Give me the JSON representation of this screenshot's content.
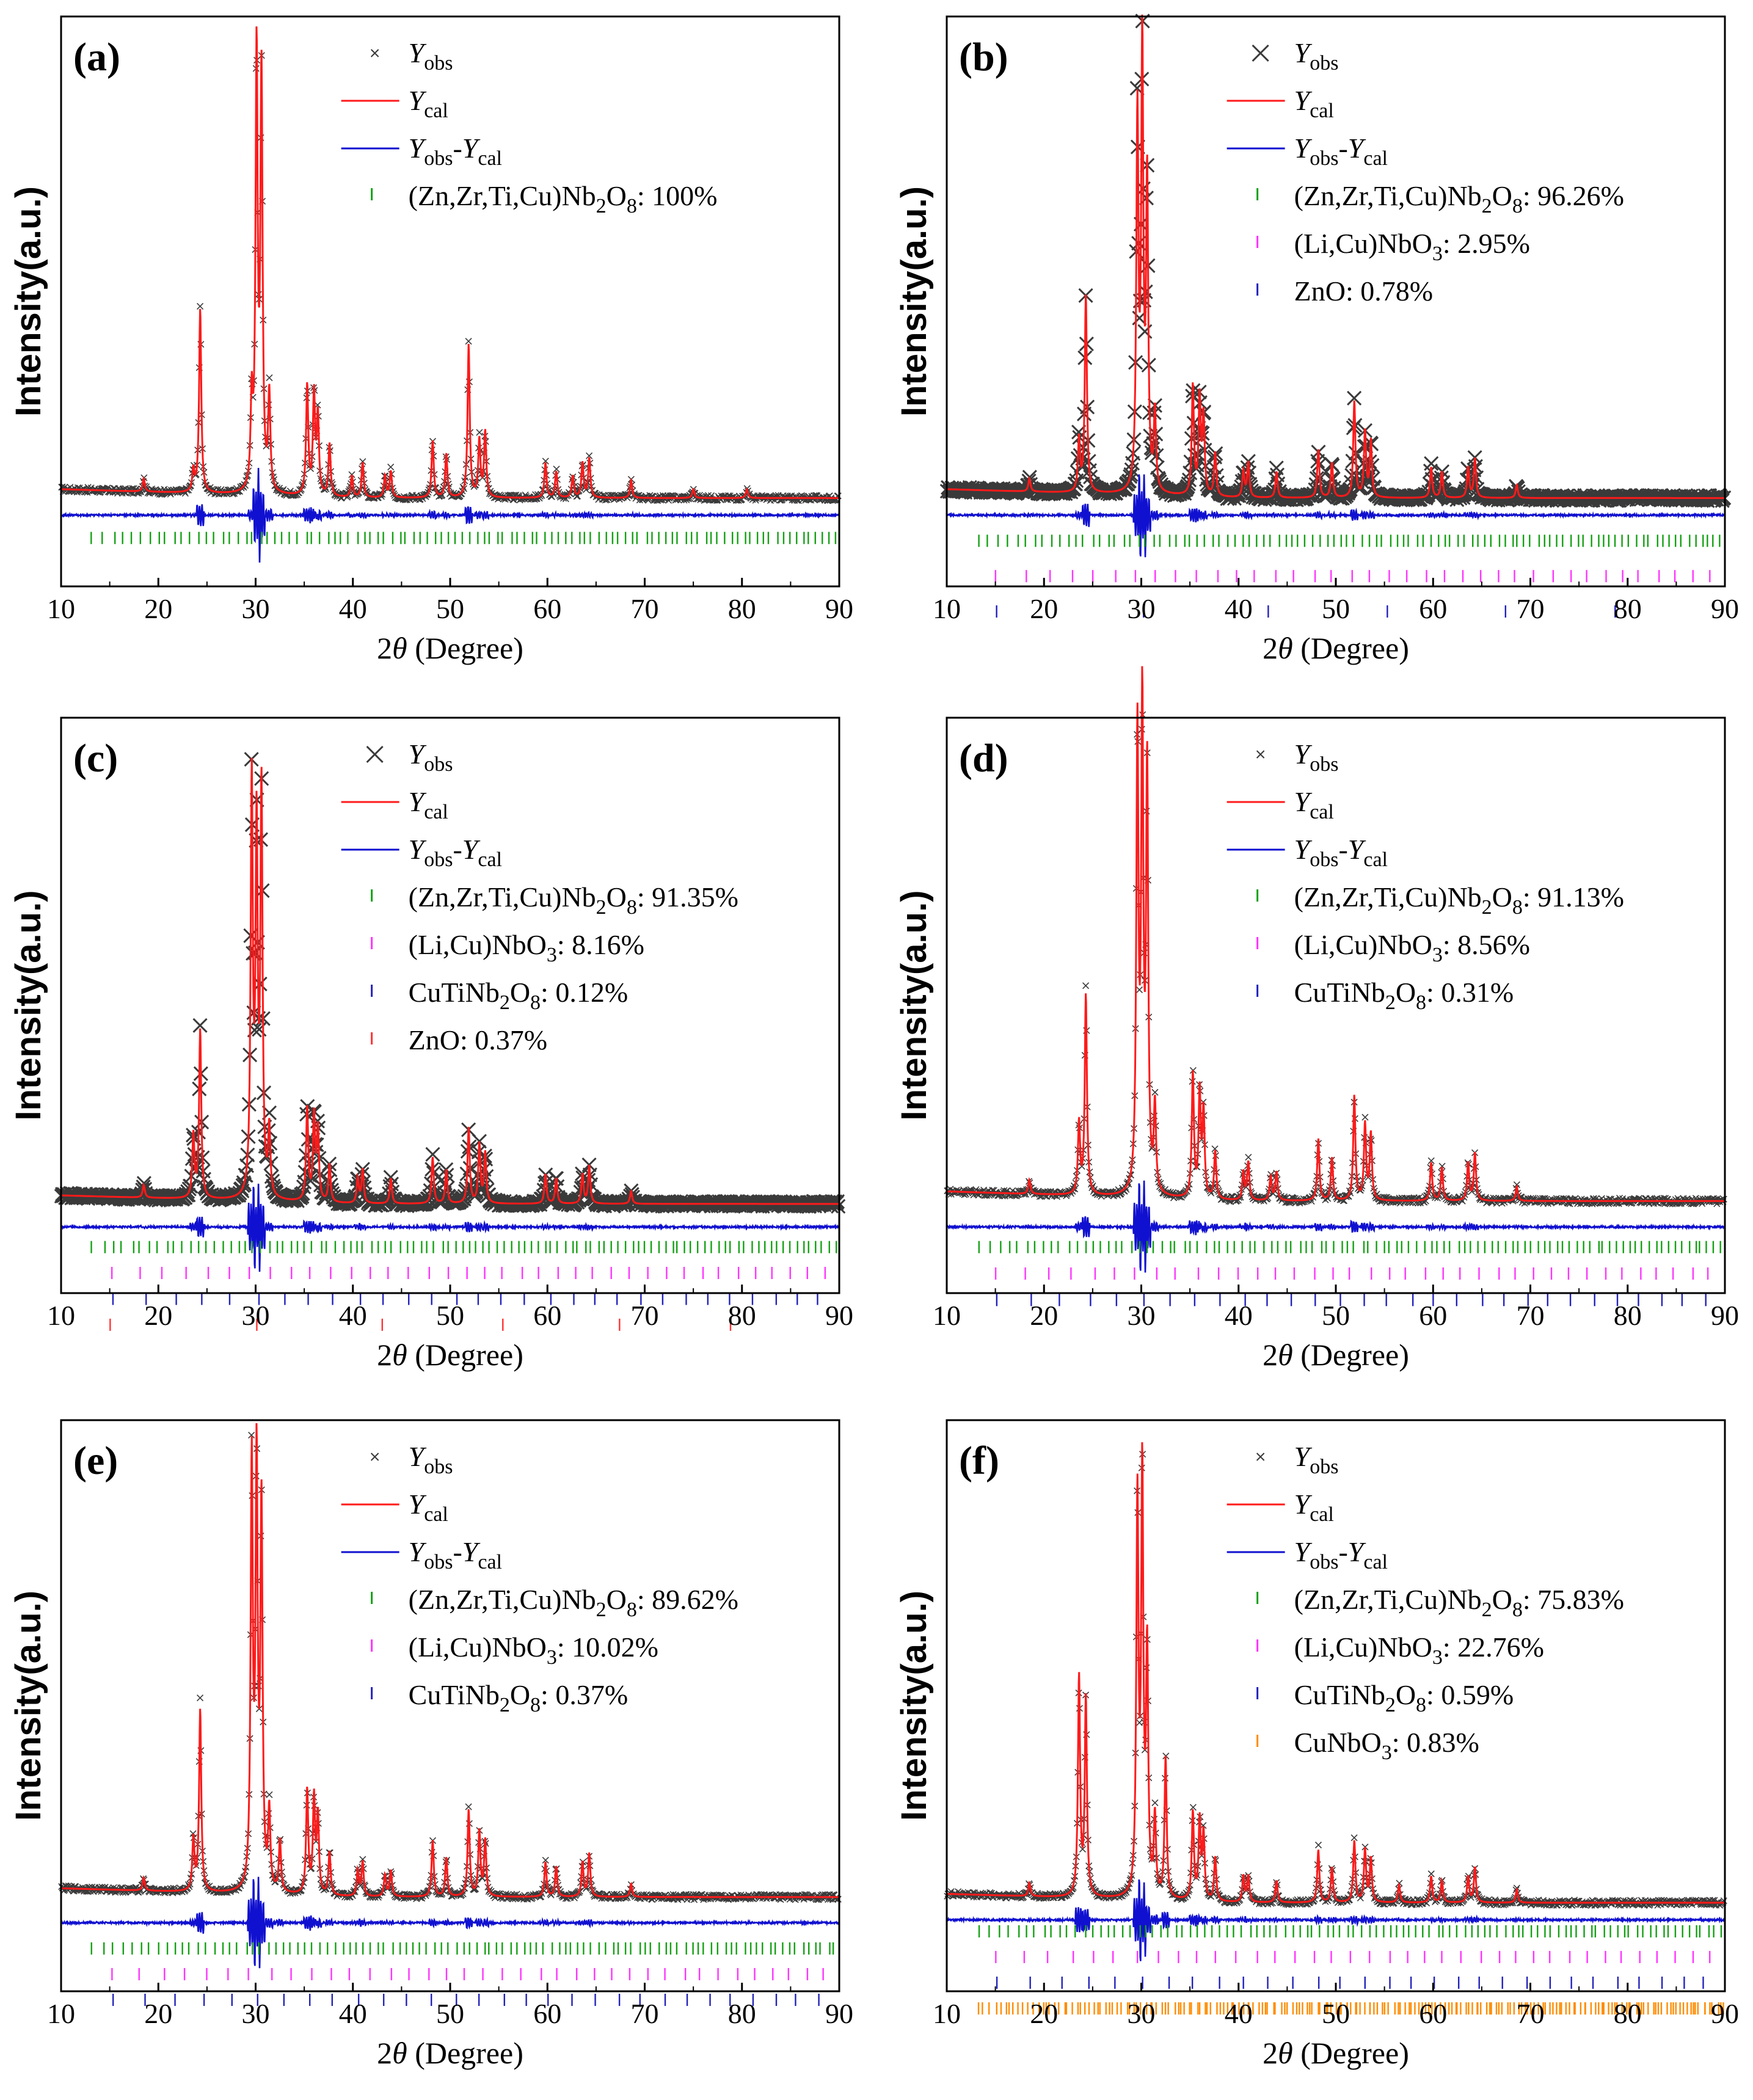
{
  "figure": {
    "colors": {
      "obs": "#3a3a3a",
      "cal": "#ff1a1a",
      "diff": "#1010d0",
      "phase_main": "#15a015",
      "phase_linbo3": "#ff33ff",
      "phase_cutinb2o8": "#2222bb",
      "phase_zno_b": "#2222bb",
      "phase_zno_c": "#ff3333",
      "phase_cunbo3": "#ff8c00"
    },
    "common": {
      "xlabel": "2θ (Degree)",
      "ylabel": "Intensity(a.u.)",
      "x_ticks": [
        "10",
        "20",
        "30",
        "40",
        "50",
        "60",
        "70",
        "80",
        "90"
      ],
      "legend_obs": "Yobs",
      "legend_cal": "Ycal",
      "legend_diff": "Yobs-Ycal"
    }
  },
  "chart_data": [
    {
      "panel": "(a)",
      "type": "line",
      "xlabel": "2θ (Degree)",
      "ylabel": "Intensity(a.u.)",
      "xlim": [
        10,
        90
      ],
      "marker_size": "small",
      "peaks": [
        [
          18.5,
          0.03
        ],
        [
          23.6,
          0.05
        ],
        [
          24.3,
          0.42
        ],
        [
          29.6,
          0.2
        ],
        [
          30.1,
          1.0
        ],
        [
          30.6,
          0.95
        ],
        [
          31.4,
          0.22
        ],
        [
          35.3,
          0.25
        ],
        [
          36.0,
          0.23
        ],
        [
          36.4,
          0.18
        ],
        [
          37.6,
          0.12
        ],
        [
          39.9,
          0.05
        ],
        [
          41.0,
          0.08
        ],
        [
          43.3,
          0.05
        ],
        [
          43.9,
          0.06
        ],
        [
          48.2,
          0.13
        ],
        [
          49.6,
          0.1
        ],
        [
          51.9,
          0.35
        ],
        [
          53.0,
          0.13
        ],
        [
          53.6,
          0.15
        ],
        [
          59.8,
          0.08
        ],
        [
          60.9,
          0.06
        ],
        [
          62.6,
          0.05
        ],
        [
          63.6,
          0.08
        ],
        [
          64.3,
          0.09
        ],
        [
          68.6,
          0.04
        ],
        [
          75.0,
          0.02
        ],
        [
          80.5,
          0.02
        ]
      ],
      "series": [
        {
          "name": "Yobs",
          "style": "cross"
        },
        {
          "name": "Ycal",
          "style": "line"
        },
        {
          "name": "Yobs-Ycal",
          "style": "line"
        }
      ],
      "phases": [
        {
          "label": "(Zn,Zr,Ti,Cu)Nb2O8: 100%",
          "color_key": "phase_main",
          "n": 105
        }
      ]
    },
    {
      "panel": "(b)",
      "type": "line",
      "xlabel": "2θ (Degree)",
      "ylabel": "Intensity(a.u.)",
      "xlim": [
        10,
        90
      ],
      "marker_size": "large",
      "peaks": [
        [
          18.5,
          0.03
        ],
        [
          23.6,
          0.12
        ],
        [
          24.3,
          0.45
        ],
        [
          29.6,
          0.85
        ],
        [
          30.1,
          1.0
        ],
        [
          30.6,
          0.7
        ],
        [
          31.4,
          0.18
        ],
        [
          35.3,
          0.25
        ],
        [
          36.0,
          0.22
        ],
        [
          36.4,
          0.18
        ],
        [
          37.6,
          0.1
        ],
        [
          40.5,
          0.06
        ],
        [
          41.0,
          0.08
        ],
        [
          43.9,
          0.06
        ],
        [
          48.2,
          0.11
        ],
        [
          49.6,
          0.08
        ],
        [
          51.9,
          0.22
        ],
        [
          53.0,
          0.15
        ],
        [
          53.6,
          0.13
        ],
        [
          59.8,
          0.07
        ],
        [
          60.9,
          0.06
        ],
        [
          63.6,
          0.07
        ],
        [
          64.3,
          0.09
        ],
        [
          68.6,
          0.03
        ]
      ],
      "series": [
        {
          "name": "Yobs",
          "style": "cross"
        },
        {
          "name": "Ycal",
          "style": "line"
        },
        {
          "name": "Yobs-Ycal",
          "style": "line"
        }
      ],
      "phases": [
        {
          "label": "(Zn,Zr,Ti,Cu)Nb2O8: 96.26%",
          "color_key": "phase_main",
          "n": 105
        },
        {
          "label": "(Li,Cu)NbO3: 2.95%",
          "color_key": "phase_linbo3",
          "n": 38
        },
        {
          "label": "ZnO: 0.78%",
          "color_key": "phase_zno_b",
          "n": 6
        }
      ]
    },
    {
      "panel": "(c)",
      "type": "line",
      "xlabel": "2θ (Degree)",
      "ylabel": "Intensity(a.u.)",
      "xlim": [
        10,
        90
      ],
      "marker_size": "large",
      "peaks": [
        [
          18.5,
          0.03
        ],
        [
          23.6,
          0.15
        ],
        [
          24.3,
          0.4
        ],
        [
          29.6,
          0.98
        ],
        [
          30.1,
          0.85
        ],
        [
          30.6,
          0.96
        ],
        [
          31.4,
          0.16
        ],
        [
          35.3,
          0.22
        ],
        [
          36.0,
          0.2
        ],
        [
          36.4,
          0.17
        ],
        [
          37.6,
          0.09
        ],
        [
          40.5,
          0.06
        ],
        [
          41.0,
          0.08
        ],
        [
          43.9,
          0.06
        ],
        [
          48.2,
          0.11
        ],
        [
          49.6,
          0.08
        ],
        [
          51.9,
          0.18
        ],
        [
          53.0,
          0.14
        ],
        [
          53.6,
          0.12
        ],
        [
          59.8,
          0.07
        ],
        [
          60.9,
          0.06
        ],
        [
          63.6,
          0.07
        ],
        [
          64.3,
          0.09
        ],
        [
          68.6,
          0.03
        ]
      ],
      "series": [
        {
          "name": "Yobs",
          "style": "cross"
        },
        {
          "name": "Ycal",
          "style": "line"
        },
        {
          "name": "Yobs-Ycal",
          "style": "line"
        }
      ],
      "phases": [
        {
          "label": "(Zn,Zr,Ti,Cu)Nb2O8: 91.35%",
          "color_key": "phase_main",
          "n": 105
        },
        {
          "label": "(Li,Cu)NbO3: 8.16%",
          "color_key": "phase_linbo3",
          "n": 38
        },
        {
          "label": "CuTiNb2O8: 0.12%",
          "color_key": "phase_cutinb2o8",
          "n": 30
        },
        {
          "label": "ZnO: 0.37%",
          "color_key": "phase_zno_c",
          "n": 6
        }
      ]
    },
    {
      "panel": "(d)",
      "type": "line",
      "xlabel": "2θ (Degree)",
      "ylabel": "Intensity(a.u.)",
      "xlim": [
        10,
        90
      ],
      "marker_size": "small",
      "peaks": [
        [
          18.5,
          0.03
        ],
        [
          23.6,
          0.15
        ],
        [
          24.3,
          0.42
        ],
        [
          29.6,
          0.96
        ],
        [
          30.1,
          1.0
        ],
        [
          30.6,
          0.88
        ],
        [
          31.4,
          0.18
        ],
        [
          35.3,
          0.26
        ],
        [
          36.0,
          0.22
        ],
        [
          36.4,
          0.18
        ],
        [
          37.6,
          0.1
        ],
        [
          40.5,
          0.06
        ],
        [
          41.0,
          0.08
        ],
        [
          43.3,
          0.05
        ],
        [
          43.9,
          0.06
        ],
        [
          48.2,
          0.13
        ],
        [
          49.6,
          0.09
        ],
        [
          51.9,
          0.22
        ],
        [
          53.0,
          0.16
        ],
        [
          53.6,
          0.14
        ],
        [
          59.8,
          0.08
        ],
        [
          60.9,
          0.07
        ],
        [
          63.6,
          0.08
        ],
        [
          64.3,
          0.1
        ],
        [
          68.6,
          0.03
        ]
      ],
      "series": [
        {
          "name": "Yobs",
          "style": "cross"
        },
        {
          "name": "Ycal",
          "style": "line"
        },
        {
          "name": "Yobs-Ycal",
          "style": "line"
        }
      ],
      "phases": [
        {
          "label": "(Zn,Zr,Ti,Cu)Nb2O8: 91.13%",
          "color_key": "phase_main",
          "n": 105
        },
        {
          "label": "(Li,Cu)NbO3: 8.56%",
          "color_key": "phase_linbo3",
          "n": 38
        },
        {
          "label": "CuTiNb2O8: 0.31%",
          "color_key": "phase_cutinb2o8",
          "n": 30
        }
      ]
    },
    {
      "panel": "(e)",
      "type": "line",
      "xlabel": "2θ (Degree)",
      "ylabel": "Intensity(a.u.)",
      "xlim": [
        10,
        90
      ],
      "marker_size": "small",
      "peaks": [
        [
          18.5,
          0.03
        ],
        [
          23.6,
          0.12
        ],
        [
          24.3,
          0.42
        ],
        [
          29.6,
          0.98
        ],
        [
          30.1,
          0.97
        ],
        [
          30.6,
          0.88
        ],
        [
          31.4,
          0.18
        ],
        [
          32.5,
          0.12
        ],
        [
          35.3,
          0.24
        ],
        [
          36.0,
          0.22
        ],
        [
          36.4,
          0.18
        ],
        [
          37.6,
          0.1
        ],
        [
          40.5,
          0.06
        ],
        [
          41.0,
          0.08
        ],
        [
          43.3,
          0.05
        ],
        [
          43.9,
          0.06
        ],
        [
          48.2,
          0.13
        ],
        [
          49.6,
          0.09
        ],
        [
          51.9,
          0.2
        ],
        [
          53.0,
          0.15
        ],
        [
          53.6,
          0.13
        ],
        [
          59.8,
          0.08
        ],
        [
          60.9,
          0.07
        ],
        [
          63.6,
          0.08
        ],
        [
          64.3,
          0.1
        ],
        [
          68.6,
          0.03
        ]
      ],
      "series": [
        {
          "name": "Yobs",
          "style": "cross"
        },
        {
          "name": "Ycal",
          "style": "line"
        },
        {
          "name": "Yobs-Ycal",
          "style": "line"
        }
      ],
      "phases": [
        {
          "label": "(Zn,Zr,Ti,Cu)Nb2O8: 89.62%",
          "color_key": "phase_main",
          "n": 105
        },
        {
          "label": "(Li,Cu)NbO3: 10.02%",
          "color_key": "phase_linbo3",
          "n": 38
        },
        {
          "label": "CuTiNb2O8: 0.37%",
          "color_key": "phase_cutinb2o8",
          "n": 30
        }
      ]
    },
    {
      "panel": "(f)",
      "type": "line",
      "xlabel": "2θ (Degree)",
      "ylabel": "Intensity(a.u.)",
      "xlim": [
        10,
        90
      ],
      "marker_size": "small",
      "peaks": [
        [
          18.5,
          0.03
        ],
        [
          23.6,
          0.5
        ],
        [
          24.3,
          0.45
        ],
        [
          29.6,
          0.9
        ],
        [
          30.1,
          0.95
        ],
        [
          30.6,
          0.55
        ],
        [
          31.4,
          0.18
        ],
        [
          32.5,
          0.32
        ],
        [
          35.3,
          0.2
        ],
        [
          36.0,
          0.18
        ],
        [
          36.4,
          0.15
        ],
        [
          37.6,
          0.1
        ],
        [
          40.5,
          0.06
        ],
        [
          41.0,
          0.06
        ],
        [
          43.9,
          0.05
        ],
        [
          48.2,
          0.12
        ],
        [
          49.6,
          0.08
        ],
        [
          51.9,
          0.14
        ],
        [
          53.0,
          0.12
        ],
        [
          53.6,
          0.1
        ],
        [
          56.5,
          0.04
        ],
        [
          59.8,
          0.06
        ],
        [
          60.9,
          0.05
        ],
        [
          63.6,
          0.06
        ],
        [
          64.3,
          0.08
        ],
        [
          68.6,
          0.03
        ]
      ],
      "series": [
        {
          "name": "Yobs",
          "style": "cross"
        },
        {
          "name": "Ycal",
          "style": "line"
        },
        {
          "name": "Yobs-Ycal",
          "style": "line"
        }
      ],
      "phases": [
        {
          "label": "(Zn,Zr,Ti,Cu)Nb2O8: 75.83%",
          "color_key": "phase_main",
          "n": 105
        },
        {
          "label": "(Li,Cu)NbO3: 22.76%",
          "color_key": "phase_linbo3",
          "n": 38
        },
        {
          "label": "CuTiNb2O8: 0.59%",
          "color_key": "phase_cutinb2o8",
          "n": 30
        },
        {
          "label": "CuNbO3: 0.83%",
          "color_key": "phase_cunbo3",
          "n": 200
        }
      ]
    }
  ]
}
